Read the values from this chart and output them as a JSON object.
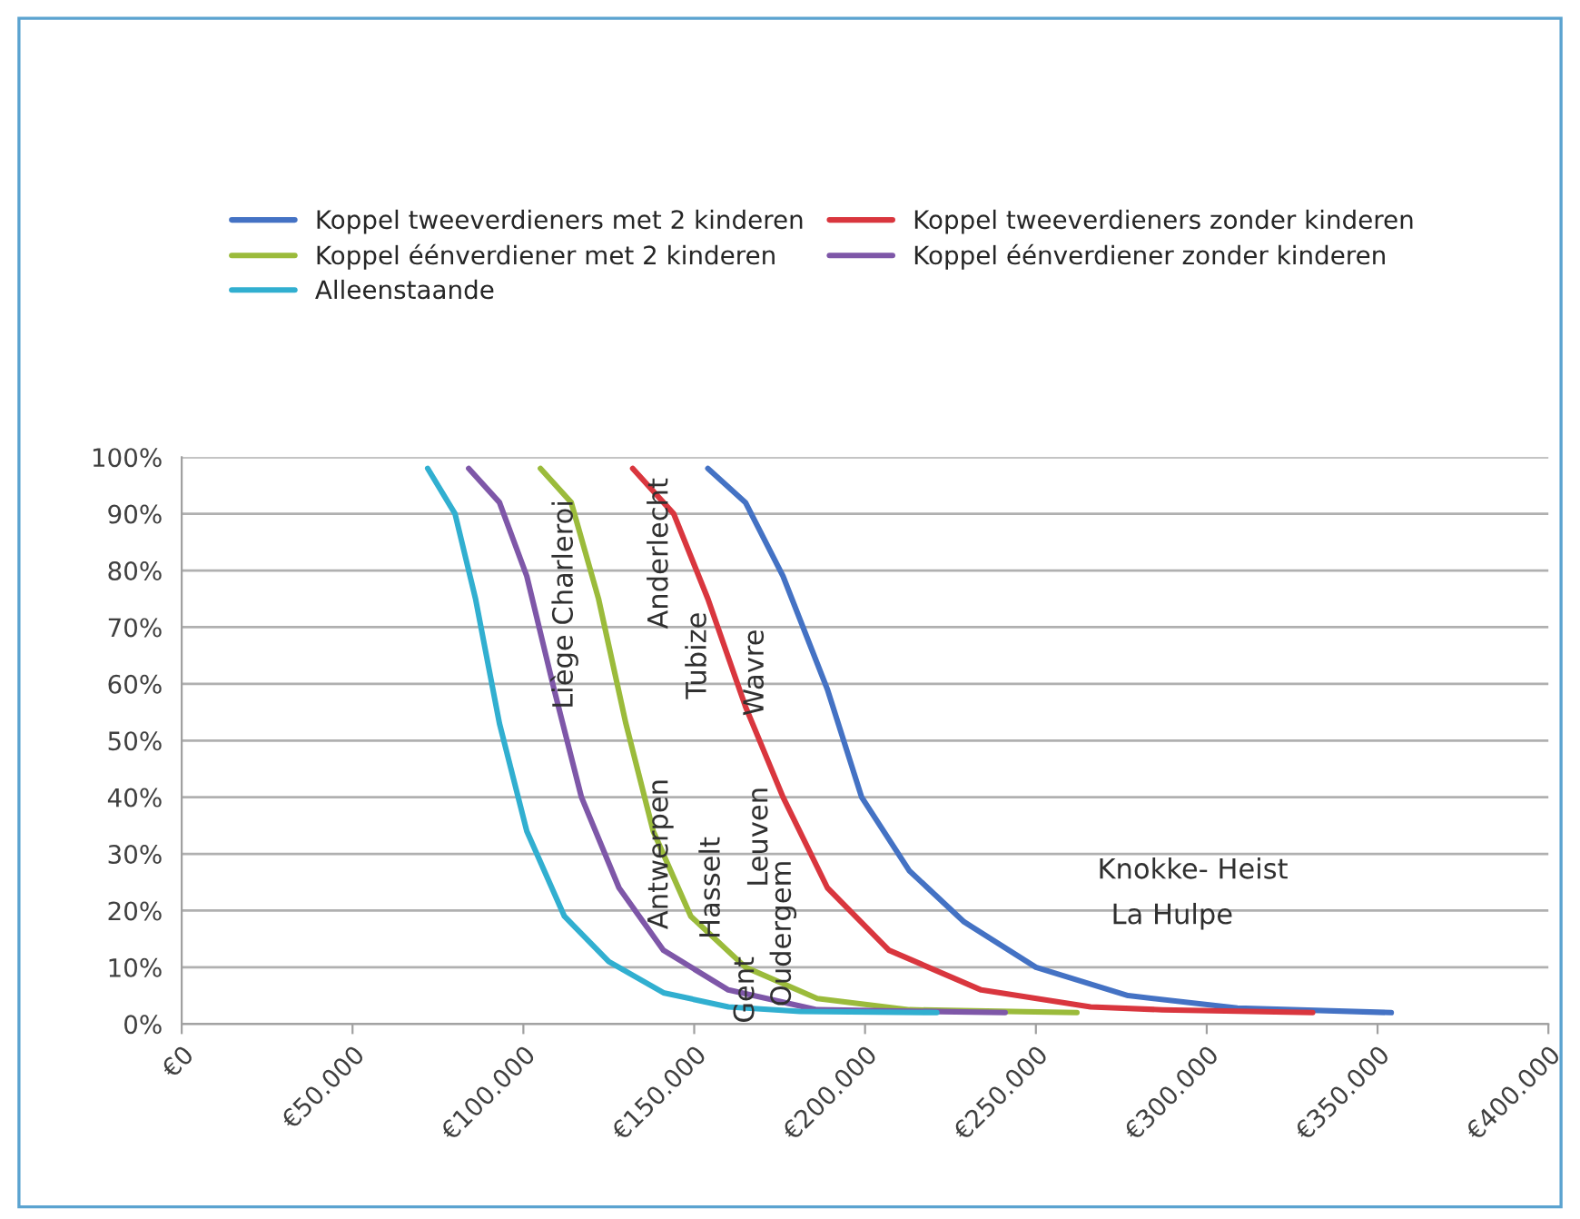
{
  "chart_data": {
    "type": "line",
    "series": [
      {
        "name": "Koppel tweeverdieners met 2 kinderen",
        "color": "#4472c4",
        "x": [
          154000,
          165000,
          176000,
          189000,
          199000,
          213000,
          229000,
          250000,
          277000,
          309000,
          354000
        ],
        "values": [
          98,
          92,
          79,
          59,
          40,
          27,
          18,
          10,
          5,
          2.8,
          2
        ]
      },
      {
        "name": "Koppel tweeverdieners zonder kinderen",
        "color": "#d9363e",
        "x": [
          132000,
          144000,
          154000,
          165000,
          176000,
          189000,
          207000,
          234000,
          266000,
          287000,
          331000
        ],
        "values": [
          98,
          90,
          75,
          56,
          40,
          24,
          13,
          6,
          3,
          2.5,
          2
        ]
      },
      {
        "name": "Koppel éénverdiener met 2 kinderen",
        "color": "#9bbb3b",
        "x": [
          105000,
          114000,
          122000,
          130000,
          138000,
          149000,
          165000,
          186000,
          213000,
          262000
        ],
        "values": [
          98,
          92,
          75,
          53,
          34,
          19,
          10,
          4.5,
          2.5,
          2
        ]
      },
      {
        "name": "Koppel éénverdiener zonder kinderen",
        "color": "#7e57a8",
        "x": [
          84000,
          93000,
          101000,
          109000,
          117000,
          128000,
          141000,
          160000,
          186000,
          241000
        ],
        "values": [
          98,
          92,
          79,
          59,
          40,
          24,
          13,
          6,
          2.5,
          2
        ]
      },
      {
        "name": "Alleenstaande",
        "color": "#31afd0",
        "x": [
          72000,
          80000,
          86000,
          93000,
          101000,
          112000,
          125000,
          141000,
          160000,
          181000,
          221000
        ],
        "values": [
          98,
          90,
          75,
          53,
          34,
          19,
          11,
          5.5,
          3,
          2.2,
          2
        ]
      }
    ],
    "xlim": [
      0,
      400000
    ],
    "xticks": [
      {
        "value": 0,
        "label": "€0"
      },
      {
        "value": 50000,
        "label": "€50.000"
      },
      {
        "value": 100000,
        "label": "€100.000"
      },
      {
        "value": 150000,
        "label": "€150.000"
      },
      {
        "value": 200000,
        "label": "€200.000"
      },
      {
        "value": 250000,
        "label": "€250.000"
      },
      {
        "value": 300000,
        "label": "€300.000"
      },
      {
        "value": 350000,
        "label": "€350.000"
      },
      {
        "value": 400000,
        "label": "€400.000"
      }
    ],
    "ylim": [
      0,
      100
    ],
    "yticks": [
      {
        "value": 0,
        "label": "0%"
      },
      {
        "value": 10,
        "label": "10%"
      },
      {
        "value": 20,
        "label": "20%"
      },
      {
        "value": 30,
        "label": "30%"
      },
      {
        "value": 40,
        "label": "40%"
      },
      {
        "value": 50,
        "label": "50%"
      },
      {
        "value": 60,
        "label": "60%"
      },
      {
        "value": 70,
        "label": "70%"
      },
      {
        "value": 80,
        "label": "80%"
      },
      {
        "value": 90,
        "label": "90%"
      },
      {
        "value": 100,
        "label": "100%"
      }
    ],
    "grid": "y",
    "legend": "top",
    "marker": "none",
    "line_style": "solid",
    "annotations": [
      "Liège Charleroi",
      "Anderlecht",
      "Tubize",
      "Wavre",
      "Antwerpen",
      "Hasselt",
      "Leuven",
      "Oudergem",
      "Gent",
      "Knokke- Heist",
      "La Hulpe"
    ]
  }
}
